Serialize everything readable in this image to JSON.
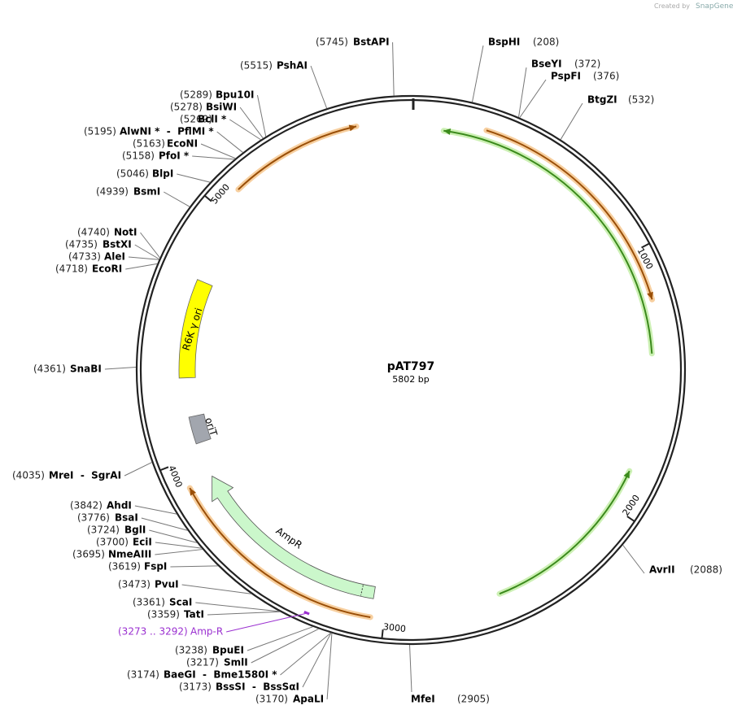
{
  "credit": {
    "prefix": "Created by",
    "brand": "SnapGene"
  },
  "plasmid": {
    "name": "pAT797",
    "size": "5802 bp"
  },
  "ticks": [
    "1000",
    "2000",
    "3000",
    "4000",
    "5000"
  ],
  "features": [
    {
      "label": "R6K γ ori"
    },
    {
      "label": "oriT"
    },
    {
      "label": "AmpR"
    }
  ],
  "primers": [
    {
      "name": "Amp-R",
      "position": "(3273 .. 3292)"
    }
  ],
  "sites": [
    {
      "name": "BstAPI",
      "position": "(5745)"
    },
    {
      "name": "PshAI",
      "position": "(5515)"
    },
    {
      "name": "Bpu10I",
      "position": "(5289)"
    },
    {
      "name": "BsiWI",
      "position": "(5278)"
    },
    {
      "name": "BclI *",
      "position": "(5269)"
    },
    {
      "name": "AlwNI *  -  PflMI *",
      "position": "(5195)"
    },
    {
      "name": "EcoNI",
      "position": "(5163)"
    },
    {
      "name": "PfoI *",
      "position": "(5158)"
    },
    {
      "name": "BlpI",
      "position": "(5046)"
    },
    {
      "name": "BsmI",
      "position": "(4939)"
    },
    {
      "name": "NotI",
      "position": "(4740)"
    },
    {
      "name": "BstXI",
      "position": "(4735)"
    },
    {
      "name": "AleI",
      "position": "(4733)"
    },
    {
      "name": "EcoRI",
      "position": "(4718)"
    },
    {
      "name": "SnaBI",
      "position": "(4361)"
    },
    {
      "name": "MreI  -  SgrAI",
      "position": "(4035)"
    },
    {
      "name": "AhdI",
      "position": "(3842)"
    },
    {
      "name": "BsaI",
      "position": "(3776)"
    },
    {
      "name": "BglI",
      "position": "(3724)"
    },
    {
      "name": "EciI",
      "position": "(3700)"
    },
    {
      "name": "NmeAIII",
      "position": "(3695)"
    },
    {
      "name": "FspI",
      "position": "(3619)"
    },
    {
      "name": "PvuI",
      "position": "(3473)"
    },
    {
      "name": "ScaI",
      "position": "(3361)"
    },
    {
      "name": "TatI",
      "position": "(3359)"
    },
    {
      "name": "BpuEI",
      "position": "(3238)"
    },
    {
      "name": "SmlI",
      "position": "(3217)"
    },
    {
      "name": "BaeGI  -  Bme1580I *",
      "position": "(3174)"
    },
    {
      "name": "BssSI  -  BssSαI",
      "position": "(3173)"
    },
    {
      "name": "ApaLI",
      "position": "(3170)"
    },
    {
      "name": "BspHI",
      "position": "(208)"
    },
    {
      "name": "BseYI",
      "position": "(372)"
    },
    {
      "name": "PspFI",
      "position": "(376)"
    },
    {
      "name": "BtgZI",
      "position": "(532)"
    },
    {
      "name": "AvrII",
      "position": "(2088)"
    },
    {
      "name": "MfeI",
      "position": "(2905)"
    }
  ]
}
